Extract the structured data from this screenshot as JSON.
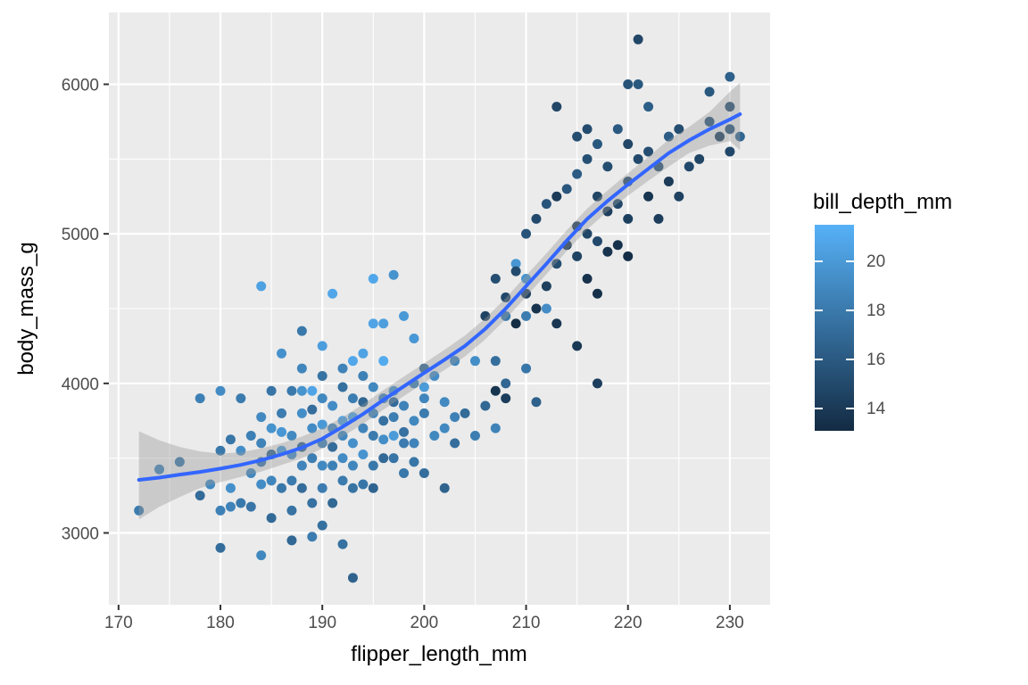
{
  "chart_data": {
    "type": "scatter",
    "title": "",
    "xlabel": "flipper_length_mm",
    "ylabel": "body_mass_g",
    "xlim": [
      169.05,
      233.95
    ],
    "ylim": [
      2520,
      6480
    ],
    "x_ticks": [
      170,
      180,
      190,
      200,
      210,
      220,
      230
    ],
    "y_ticks": [
      3000,
      4000,
      5000,
      6000
    ],
    "x_minor_ticks": [
      175,
      185,
      195,
      205,
      215,
      225
    ],
    "y_minor_ticks": [
      3500,
      4500,
      5500
    ],
    "grid": true,
    "panel_bg": "#EBEBEB",
    "grid_color": "#FFFFFF",
    "tick_mark_color": "#333333",
    "tick_label_color": "#4D4D4D",
    "point_radius": 5.5,
    "legend": {
      "title": "bill_depth_mm",
      "position": "right",
      "ticks": [
        20,
        18,
        16,
        14
      ],
      "limits": [
        13.1,
        21.5
      ]
    },
    "color_scale": {
      "variable": "bill_depth_mm",
      "low_value": 13.1,
      "high_value": 21.5,
      "low_color": "#132B43",
      "high_color": "#56B1F7"
    },
    "smooth": {
      "line_color": "#3366FF",
      "line_width": 4,
      "band_color": "#999999",
      "band_opacity": 0.4,
      "line": [
        [
          172,
          3355
        ],
        [
          174,
          3370
        ],
        [
          176,
          3390
        ],
        [
          178,
          3408
        ],
        [
          180,
          3430
        ],
        [
          182,
          3455
        ],
        [
          184,
          3487
        ],
        [
          186,
          3525
        ],
        [
          188,
          3570
        ],
        [
          190,
          3630
        ],
        [
          192,
          3710
        ],
        [
          194,
          3795
        ],
        [
          196,
          3890
        ],
        [
          198,
          3980
        ],
        [
          200,
          4070
        ],
        [
          202,
          4158
        ],
        [
          204,
          4250
        ],
        [
          206,
          4365
        ],
        [
          208,
          4500
        ],
        [
          210,
          4650
        ],
        [
          212,
          4800
        ],
        [
          214,
          4955
        ],
        [
          216,
          5100
        ],
        [
          218,
          5220
        ],
        [
          220,
          5330
        ],
        [
          222,
          5435
        ],
        [
          224,
          5540
        ],
        [
          226,
          5625
        ],
        [
          228,
          5700
        ],
        [
          230,
          5765
        ],
        [
          231,
          5800
        ]
      ],
      "band": [
        [
          172,
          3090,
          3680
        ],
        [
          174,
          3175,
          3620
        ],
        [
          176,
          3240,
          3575
        ],
        [
          178,
          3300,
          3545
        ],
        [
          180,
          3340,
          3530
        ],
        [
          182,
          3375,
          3540
        ],
        [
          184,
          3410,
          3565
        ],
        [
          186,
          3455,
          3600
        ],
        [
          188,
          3500,
          3645
        ],
        [
          190,
          3565,
          3700
        ],
        [
          192,
          3645,
          3775
        ],
        [
          194,
          3730,
          3860
        ],
        [
          196,
          3825,
          3955
        ],
        [
          198,
          3915,
          4045
        ],
        [
          200,
          4005,
          4135
        ],
        [
          202,
          4090,
          4225
        ],
        [
          204,
          4180,
          4320
        ],
        [
          206,
          4295,
          4435
        ],
        [
          208,
          4430,
          4570
        ],
        [
          210,
          4580,
          4720
        ],
        [
          212,
          4730,
          4870
        ],
        [
          214,
          4885,
          5025
        ],
        [
          216,
          5030,
          5170
        ],
        [
          218,
          5150,
          5290
        ],
        [
          220,
          5255,
          5405
        ],
        [
          222,
          5355,
          5515
        ],
        [
          224,
          5450,
          5630
        ],
        [
          226,
          5540,
          5715
        ],
        [
          228,
          5590,
          5815
        ],
        [
          230,
          5620,
          5950
        ],
        [
          231,
          5560,
          6010
        ]
      ]
    },
    "points": [
      [
        172,
        3150,
        18.1
      ],
      [
        174,
        3425,
        18.6
      ],
      [
        176,
        3475,
        17.9
      ],
      [
        178,
        3250,
        17.1
      ],
      [
        180,
        2900,
        17.2
      ],
      [
        184,
        2850,
        18.9
      ],
      [
        187,
        2950,
        16.9
      ],
      [
        189,
        2975,
        18.2
      ],
      [
        192,
        2925,
        17.5
      ],
      [
        193,
        2700,
        16.6
      ],
      [
        178,
        3900,
        18.4
      ],
      [
        179,
        3325,
        19.0
      ],
      [
        180,
        3150,
        18.5
      ],
      [
        180,
        3550,
        17.9
      ],
      [
        180,
        3950,
        19.1
      ],
      [
        181,
        3175,
        18.6
      ],
      [
        181,
        3300,
        19.4
      ],
      [
        181,
        3625,
        17.8
      ],
      [
        182,
        3200,
        18.0
      ],
      [
        182,
        3550,
        19.3
      ],
      [
        182,
        3900,
        18.1
      ],
      [
        183,
        3400,
        18.9
      ],
      [
        183,
        3650,
        18.4
      ],
      [
        183,
        3175,
        17.7
      ],
      [
        184,
        3325,
        19.2
      ],
      [
        184,
        3475,
        17.8
      ],
      [
        184,
        3600,
        18.6
      ],
      [
        184,
        3775,
        19.0
      ],
      [
        185,
        3100,
        17.0
      ],
      [
        185,
        3350,
        18.8
      ],
      [
        185,
        3525,
        16.8
      ],
      [
        185,
        3700,
        19.6
      ],
      [
        185,
        3950,
        17.7
      ],
      [
        186,
        3300,
        17.9
      ],
      [
        186,
        3550,
        20.0
      ],
      [
        186,
        3675,
        19.8
      ],
      [
        186,
        3800,
        18.2
      ],
      [
        187,
        3150,
        17.6
      ],
      [
        187,
        3350,
        18.1
      ],
      [
        187,
        3525,
        19.2
      ],
      [
        187,
        3650,
        19.0
      ],
      [
        187,
        3950,
        18.0
      ],
      [
        188,
        3300,
        17.2
      ],
      [
        188,
        3450,
        18.7
      ],
      [
        188,
        3575,
        16.6
      ],
      [
        188,
        3800,
        19.3
      ],
      [
        188,
        3950,
        19.6
      ],
      [
        188,
        4100,
        18.8
      ],
      [
        189,
        3200,
        17.5
      ],
      [
        189,
        3500,
        18.3
      ],
      [
        189,
        3700,
        19.1
      ],
      [
        189,
        3825,
        17.3
      ],
      [
        189,
        3950,
        20.7
      ],
      [
        190,
        3050,
        17.4
      ],
      [
        190,
        3300,
        18.2
      ],
      [
        190,
        3450,
        19.0
      ],
      [
        190,
        3600,
        18.5
      ],
      [
        190,
        3725,
        20.0
      ],
      [
        190,
        3900,
        18.9
      ],
      [
        190,
        4050,
        17.6
      ],
      [
        191,
        3200,
        16.9
      ],
      [
        191,
        3450,
        18.4
      ],
      [
        191,
        3575,
        17.2
      ],
      [
        191,
        3700,
        18.9
      ],
      [
        191,
        3850,
        19.2
      ],
      [
        192,
        3350,
        18.1
      ],
      [
        192,
        3500,
        19.1
      ],
      [
        192,
        3650,
        18.9
      ],
      [
        192,
        3750,
        20.5
      ],
      [
        192,
        3975,
        17.4
      ],
      [
        192,
        4100,
        18.6
      ],
      [
        193,
        3300,
        17.6
      ],
      [
        193,
        3450,
        18.8
      ],
      [
        193,
        3600,
        19.4
      ],
      [
        193,
        3775,
        20.6
      ],
      [
        193,
        3900,
        18.3
      ],
      [
        194,
        3325,
        17.8
      ],
      [
        194,
        3525,
        19.7
      ],
      [
        194,
        3700,
        18.7
      ],
      [
        194,
        3875,
        16.8
      ],
      [
        194,
        4050,
        18.4
      ],
      [
        195,
        3300,
        16.7
      ],
      [
        195,
        3450,
        17.9
      ],
      [
        195,
        3650,
        18.1
      ],
      [
        195,
        3800,
        18.8
      ],
      [
        195,
        3975,
        18.9
      ],
      [
        196,
        3500,
        17.0
      ],
      [
        196,
        3625,
        19.3
      ],
      [
        196,
        3750,
        17.5
      ],
      [
        196,
        3900,
        18.6
      ],
      [
        197,
        3500,
        17.7
      ],
      [
        197,
        3650,
        20.1
      ],
      [
        197,
        3775,
        18.3
      ],
      [
        197,
        3875,
        17.1
      ],
      [
        197,
        3950,
        19.5
      ],
      [
        198,
        3400,
        17.9
      ],
      [
        198,
        3600,
        18.2
      ],
      [
        198,
        3675,
        17.5
      ],
      [
        198,
        3850,
        18.6
      ],
      [
        199,
        3475,
        17.8
      ],
      [
        199,
        3600,
        18.7
      ],
      [
        199,
        3750,
        18.9
      ],
      [
        199,
        4000,
        18.4
      ],
      [
        200,
        3400,
        17.3
      ],
      [
        200,
        3800,
        18.1
      ],
      [
        200,
        3900,
        18.8
      ],
      [
        200,
        3975,
        20.1
      ],
      [
        200,
        4100,
        17.0
      ],
      [
        201,
        3650,
        18.9
      ],
      [
        201,
        4050,
        19.2
      ],
      [
        202,
        3300,
        16.6
      ],
      [
        202,
        3700,
        19.0
      ],
      [
        202,
        3875,
        19.0
      ],
      [
        203,
        3775,
        18.5
      ],
      [
        203,
        4150,
        18.8
      ],
      [
        184,
        4650,
        20.5
      ],
      [
        186,
        4200,
        19.5
      ],
      [
        188,
        4350,
        17.9
      ],
      [
        190,
        4250,
        20.3
      ],
      [
        191,
        4600,
        20.8
      ],
      [
        193,
        4150,
        20.9
      ],
      [
        194,
        4200,
        20.6
      ],
      [
        195,
        4400,
        20.7
      ],
      [
        195,
        4700,
        20.9
      ],
      [
        196,
        4400,
        20.3
      ],
      [
        196,
        4150,
        21.1
      ],
      [
        197,
        4725,
        19.6
      ],
      [
        198,
        4450,
        20.0
      ],
      [
        199,
        4300,
        19.9
      ],
      [
        203,
        3600,
        17.3
      ],
      [
        204,
        3800,
        17.1
      ],
      [
        205,
        3650,
        18.3
      ],
      [
        205,
        4150,
        19.3
      ],
      [
        206,
        3850,
        16.9
      ],
      [
        207,
        3700,
        18.6
      ],
      [
        207,
        4150,
        17.3
      ],
      [
        208,
        4450,
        18.0
      ],
      [
        208,
        4000,
        16.8
      ],
      [
        209,
        4800,
        19.8
      ],
      [
        210,
        4100,
        17.8
      ],
      [
        210,
        4450,
        18.2
      ],
      [
        210,
        4700,
        19.6
      ],
      [
        211,
        3875,
        16.5
      ],
      [
        212,
        4500,
        19.2
      ],
      [
        206,
        4450,
        14.6
      ],
      [
        207,
        3950,
        13.7
      ],
      [
        207,
        4700,
        15.3
      ],
      [
        208,
        3900,
        14.2
      ],
      [
        208,
        4575,
        14.9
      ],
      [
        209,
        4400,
        13.2
      ],
      [
        209,
        4750,
        15.1
      ],
      [
        210,
        4600,
        14.5
      ],
      [
        210,
        5000,
        15.6
      ],
      [
        211,
        4500,
        13.6
      ],
      [
        211,
        5100,
        15.0
      ],
      [
        212,
        4650,
        14.4
      ],
      [
        212,
        5200,
        15.7
      ],
      [
        213,
        4400,
        13.8
      ],
      [
        213,
        4800,
        15.2
      ],
      [
        213,
        5250,
        14.1
      ],
      [
        213,
        5850,
        14.8
      ],
      [
        214,
        4925,
        13.9
      ],
      [
        214,
        5300,
        15.8
      ],
      [
        215,
        4250,
        13.9
      ],
      [
        215,
        4850,
        14.6
      ],
      [
        215,
        5050,
        14.1
      ],
      [
        215,
        5400,
        16.1
      ],
      [
        215,
        5650,
        15.2
      ],
      [
        216,
        4700,
        13.5
      ],
      [
        216,
        5000,
        14.8
      ],
      [
        216,
        5500,
        15.4
      ],
      [
        216,
        5700,
        15.1
      ],
      [
        217,
        4000,
        14.3
      ],
      [
        217,
        4600,
        13.4
      ],
      [
        217,
        4950,
        15.0
      ],
      [
        217,
        5250,
        14.7
      ],
      [
        217,
        5600,
        15.9
      ],
      [
        218,
        4880,
        13.6
      ],
      [
        218,
        5150,
        14.3
      ],
      [
        218,
        5450,
        15.2
      ],
      [
        219,
        4925,
        13.5
      ],
      [
        219,
        5200,
        14.9
      ],
      [
        219,
        5700,
        16.0
      ],
      [
        220,
        4850,
        13.3
      ],
      [
        220,
        5100,
        14.4
      ],
      [
        220,
        5350,
        15.1
      ],
      [
        220,
        5600,
        14.8
      ],
      [
        220,
        6000,
        15.6
      ],
      [
        221,
        5500,
        15.0
      ],
      [
        221,
        6000,
        15.9
      ],
      [
        221,
        6300,
        14.8
      ],
      [
        222,
        5250,
        13.7
      ],
      [
        222,
        5550,
        15.3
      ],
      [
        222,
        5850,
        16.3
      ],
      [
        223,
        5100,
        14.2
      ],
      [
        223,
        5450,
        15.5
      ],
      [
        224,
        5350,
        14.1
      ],
      [
        224,
        5650,
        16.2
      ],
      [
        225,
        5250,
        14.5
      ],
      [
        225,
        5700,
        15.2
      ],
      [
        226,
        5450,
        14.9
      ],
      [
        227,
        5500,
        14.7
      ],
      [
        228,
        5750,
        15.6
      ],
      [
        228,
        5950,
        15.9
      ],
      [
        229,
        5650,
        14.4
      ],
      [
        230,
        5550,
        14.9
      ],
      [
        230,
        5700,
        15.7
      ],
      [
        230,
        5850,
        15.3
      ],
      [
        230,
        6050,
        16.4
      ],
      [
        231,
        5650,
        16.8
      ]
    ]
  }
}
